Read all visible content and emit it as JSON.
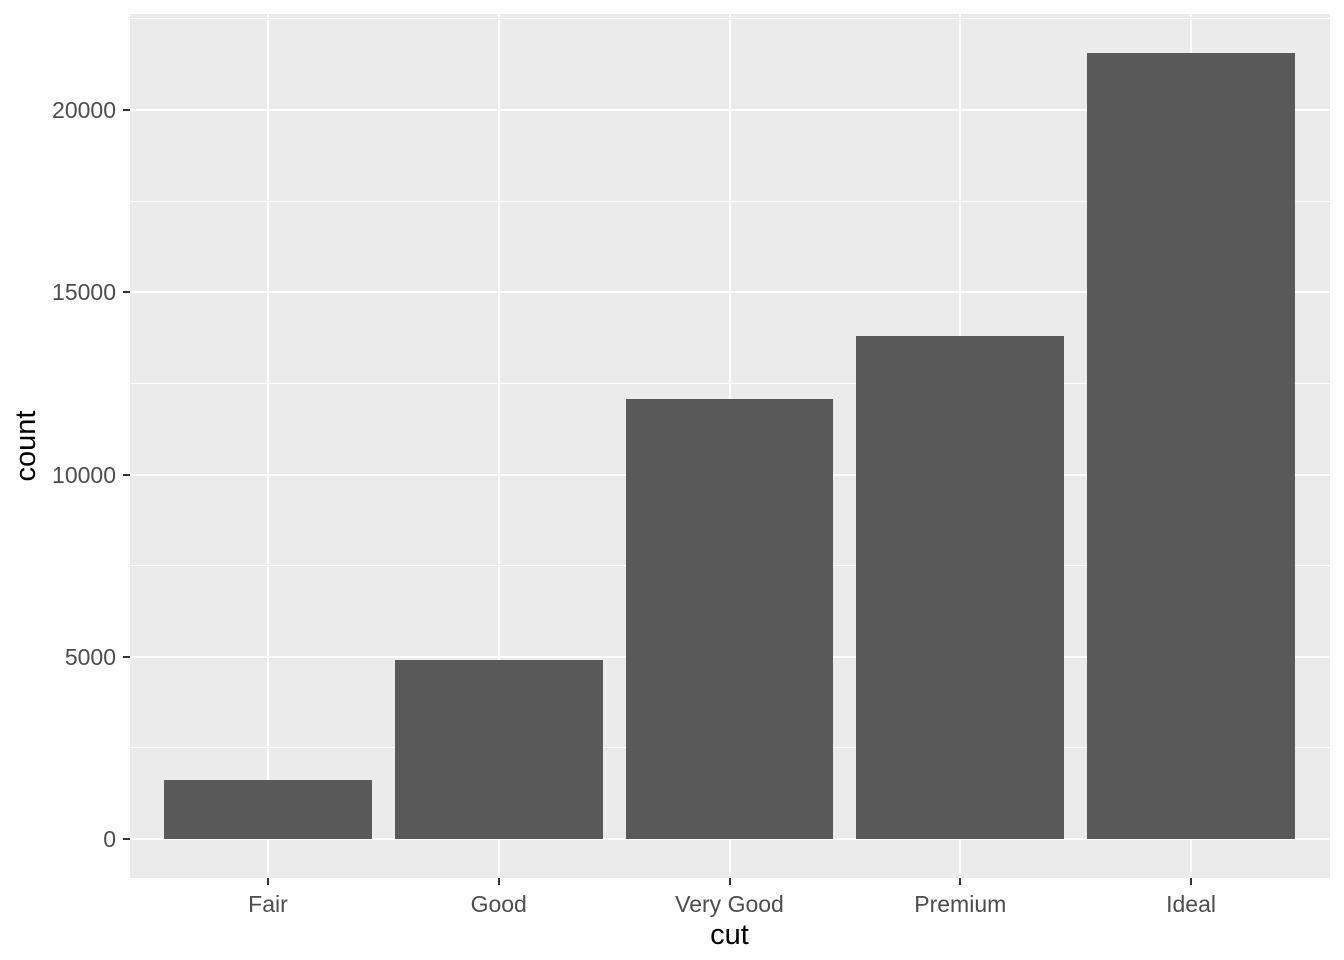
{
  "chart_data": {
    "type": "bar",
    "title": "",
    "xlabel": "cut",
    "ylabel": "count",
    "categories": [
      "Fair",
      "Good",
      "Very Good",
      "Premium",
      "Ideal"
    ],
    "values": [
      1610,
      4906,
      12082,
      13791,
      21551
    ],
    "ylim": [
      -1078,
      22629
    ],
    "y_major_ticks": [
      {
        "value": 0,
        "label": "0"
      },
      {
        "value": 5000,
        "label": "5000"
      },
      {
        "value": 10000,
        "label": "10000"
      },
      {
        "value": 15000,
        "label": "15000"
      },
      {
        "value": 20000,
        "label": "20000"
      }
    ],
    "y_minor_ticks": [
      2500,
      7500,
      12500,
      17500,
      22500
    ],
    "x_expand": 0.6,
    "bar_rel_width": 0.9,
    "grid": true,
    "legend": "none",
    "colors": {
      "figure_background": "#FFFFFF",
      "panel_background": "#EBEBEB",
      "bar_fill": "#595959",
      "gridline_major": "#FFFFFF",
      "gridline_minor": "#FFFFFF",
      "tick_label": "#4D4D4D",
      "axis_title": "#000000",
      "tick_mark": "#333333"
    }
  }
}
